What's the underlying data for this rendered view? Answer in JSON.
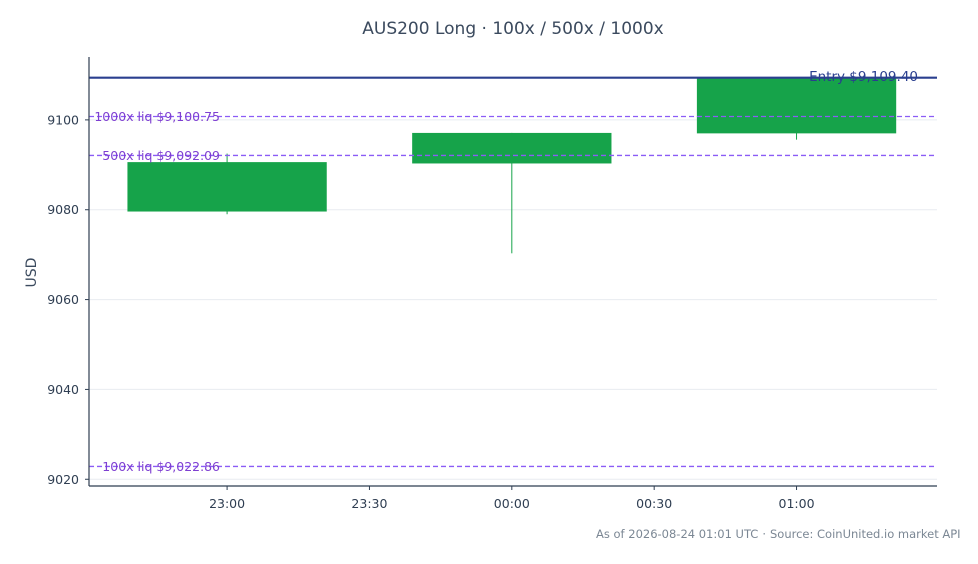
{
  "chart_data": {
    "type": "candlestick",
    "title": "AUS200 Long · 100x / 500x / 1000x",
    "ylabel": "USD",
    "xlabel": "",
    "ylim": [
      9018.5,
      9114
    ],
    "yticks": [
      9020,
      9040,
      9060,
      9080,
      9100
    ],
    "xticks": [
      {
        "label": "23:00",
        "t": 0
      },
      {
        "label": "23:30",
        "t": 30
      },
      {
        "label": "00:00",
        "t": 60
      },
      {
        "label": "00:30",
        "t": 90
      },
      {
        "label": "01:00",
        "t": 120
      }
    ],
    "xlim": [
      -29.1,
      149.6
    ],
    "grid": true,
    "candles": [
      {
        "t": 0,
        "open": 9079.6,
        "high": 9092.5,
        "low": 9079.0,
        "close": 9090.6,
        "color": "#16a34a"
      },
      {
        "t": 60,
        "open": 9090.3,
        "high": 9097.1,
        "low": 9070.3,
        "close": 9097.1,
        "color": "#16a34a"
      },
      {
        "t": 120,
        "open": 9097.0,
        "high": 9109.4,
        "low": 9095.6,
        "close": 9109.4,
        "color": "#16a34a"
      }
    ],
    "candle_width_minutes": 42,
    "reference_lines": [
      {
        "label": "Entry $9,109.40",
        "value": 9109.4,
        "style": "solid",
        "color": "#2a3f8f"
      },
      {
        "label": "1000x liq $9,100.75",
        "value": 9100.75,
        "style": "dashed",
        "color": "#8b5cf6"
      },
      {
        "label": "500x liq $9,092.09",
        "value": 9092.09,
        "style": "dashed",
        "color": "#8b5cf6"
      },
      {
        "label": "100x liq $9,022.86",
        "value": 9022.86,
        "style": "dashed",
        "color": "#8b5cf6"
      }
    ]
  },
  "footer": {
    "as_of": "As of 2026-08-24 01:01 UTC",
    "separator": "·",
    "source": "Source: CoinUnited.io market API"
  }
}
